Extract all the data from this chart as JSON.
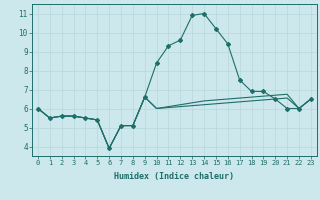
{
  "xlabel": "Humidex (Indice chaleur)",
  "background_color": "#cce8ec",
  "line_color": "#1e6e6a",
  "grid_color": "#b8d8dc",
  "xlim": [
    -0.5,
    23.5
  ],
  "ylim": [
    3.5,
    11.5
  ],
  "xticks": [
    0,
    1,
    2,
    3,
    4,
    5,
    6,
    7,
    8,
    9,
    10,
    11,
    12,
    13,
    14,
    15,
    16,
    17,
    18,
    19,
    20,
    21,
    22,
    23
  ],
  "yticks": [
    4,
    5,
    6,
    7,
    8,
    9,
    10,
    11
  ],
  "series": [
    [
      6.0,
      5.5,
      5.6,
      5.6,
      5.5,
      5.4,
      3.9,
      5.1,
      5.1,
      6.6,
      6.0,
      6.05,
      6.1,
      6.15,
      6.2,
      6.25,
      6.3,
      6.35,
      6.4,
      6.45,
      6.5,
      6.55,
      6.0,
      6.5
    ],
    [
      6.0,
      5.5,
      5.6,
      5.6,
      5.5,
      5.4,
      3.9,
      5.1,
      5.1,
      6.6,
      6.0,
      6.1,
      6.2,
      6.3,
      6.4,
      6.45,
      6.5,
      6.55,
      6.6,
      6.65,
      6.7,
      6.75,
      6.0,
      6.5
    ],
    [
      6.0,
      5.5,
      5.6,
      5.6,
      5.5,
      5.4,
      3.9,
      5.1,
      5.1,
      6.6,
      8.4,
      9.3,
      9.6,
      10.9,
      11.0,
      10.2,
      9.4,
      7.5,
      6.9,
      6.9,
      6.5,
      6.0,
      6.0,
      6.5
    ]
  ],
  "marker_series": 2
}
